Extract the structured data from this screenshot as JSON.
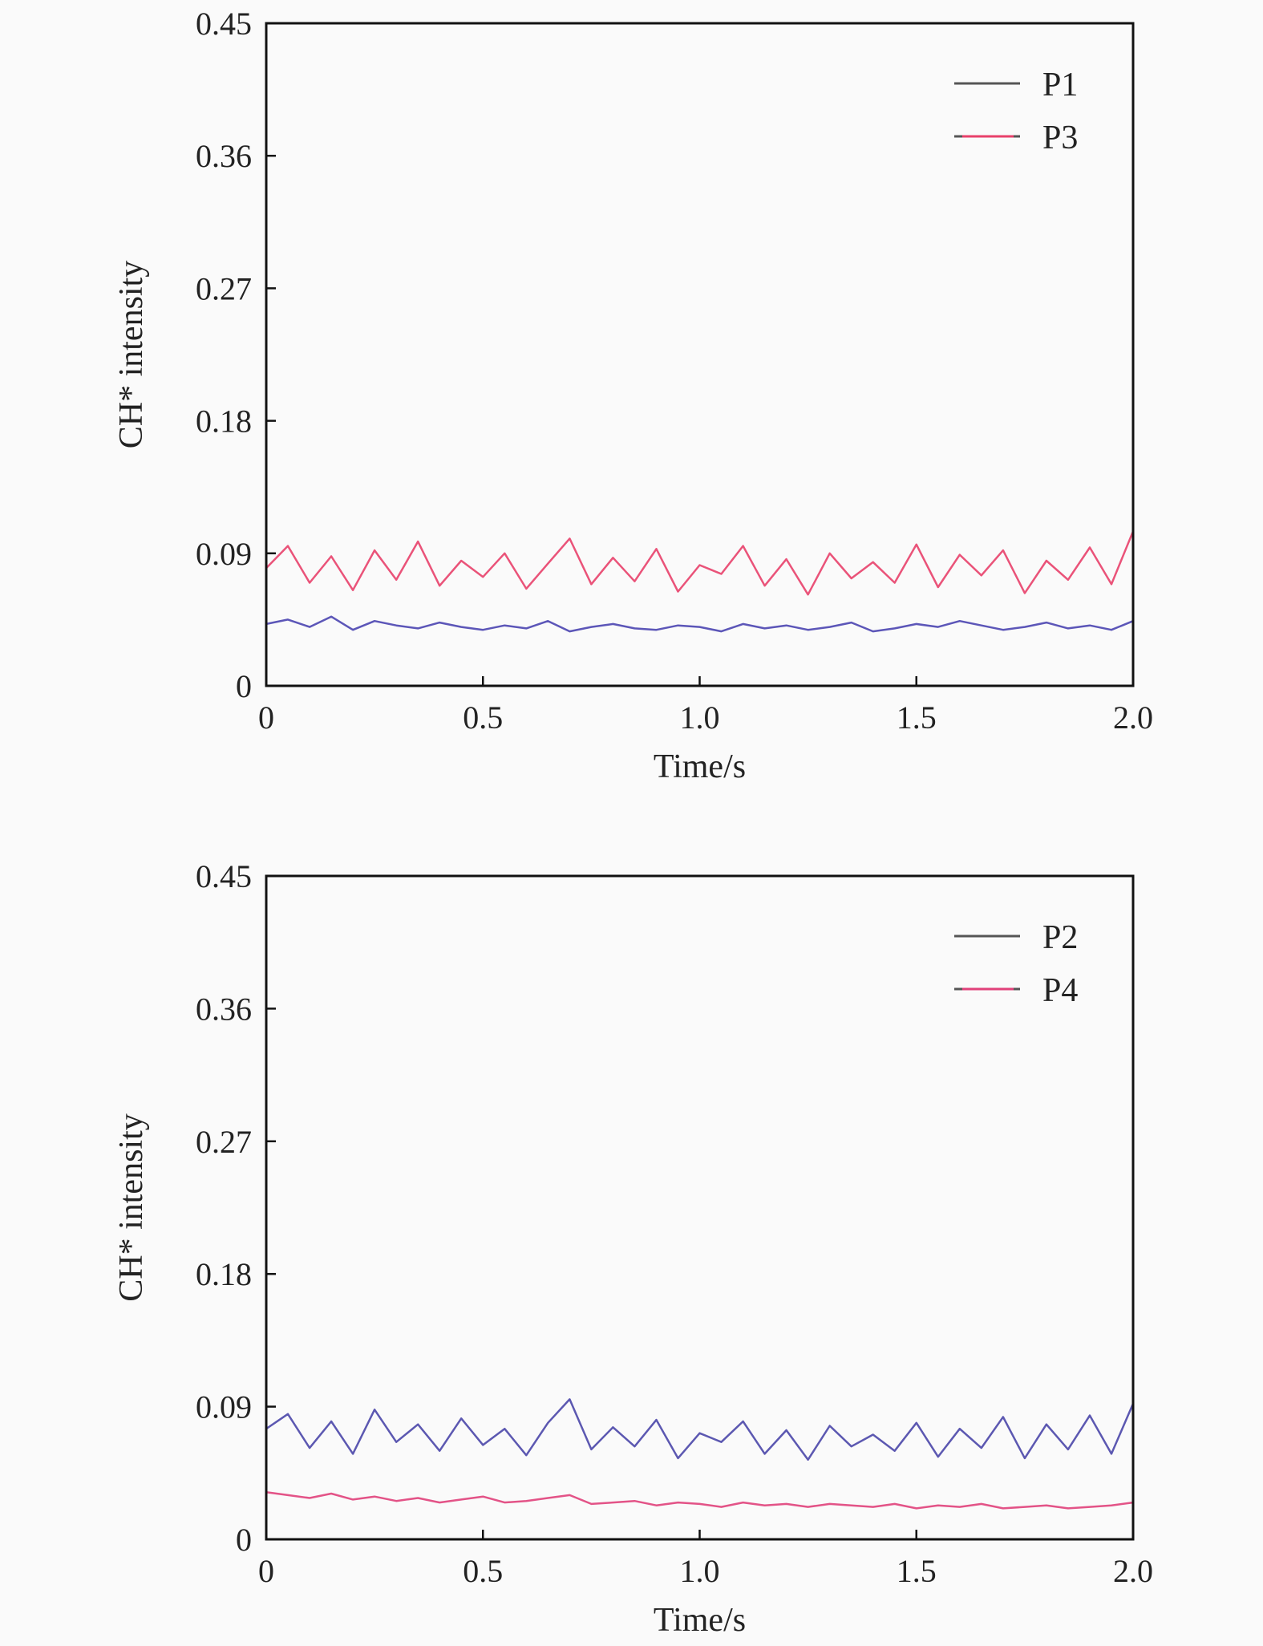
{
  "chart_data": [
    {
      "type": "line",
      "title": "",
      "xlabel": "Time/s",
      "ylabel": "CH* intensity",
      "xlim": [
        0,
        2.0
      ],
      "ylim": [
        0,
        0.45
      ],
      "xticks": [
        "0",
        "0.5",
        "1.0",
        "1.5",
        "2.0"
      ],
      "xtick_values": [
        0,
        0.5,
        1.0,
        1.5,
        2.0
      ],
      "yticks": [
        "0",
        "0.09",
        "0.18",
        "0.27",
        "0.36",
        "0.45"
      ],
      "ytick_values": [
        0,
        0.09,
        0.18,
        0.27,
        0.36,
        0.45
      ],
      "legend_position": "top-right",
      "x_step": 0.05,
      "series": [
        {
          "name": "P1",
          "color": "#4a44b0",
          "values": [
            0.042,
            0.045,
            0.04,
            0.047,
            0.038,
            0.044,
            0.041,
            0.039,
            0.043,
            0.04,
            0.038,
            0.041,
            0.039,
            0.044,
            0.037,
            0.04,
            0.042,
            0.039,
            0.038,
            0.041,
            0.04,
            0.037,
            0.042,
            0.039,
            0.041,
            0.038,
            0.04,
            0.043,
            0.037,
            0.039,
            0.042,
            0.04,
            0.044,
            0.041,
            0.038,
            0.04,
            0.043,
            0.039,
            0.041,
            0.038,
            0.044
          ]
        },
        {
          "name": "P3",
          "color": "#e8406a",
          "values": [
            0.08,
            0.095,
            0.07,
            0.088,
            0.065,
            0.092,
            0.072,
            0.098,
            0.068,
            0.085,
            0.074,
            0.09,
            0.066,
            0.083,
            0.1,
            0.069,
            0.087,
            0.071,
            0.093,
            0.064,
            0.082,
            0.076,
            0.095,
            0.068,
            0.086,
            0.062,
            0.09,
            0.073,
            0.084,
            0.07,
            0.096,
            0.067,
            0.089,
            0.075,
            0.092,
            0.063,
            0.085,
            0.072,
            0.094,
            0.069,
            0.105
          ]
        }
      ]
    },
    {
      "type": "line",
      "title": "",
      "xlabel": "Time/s",
      "ylabel": "CH* intensity",
      "xlim": [
        0,
        2.0
      ],
      "ylim": [
        0,
        0.45
      ],
      "xticks": [
        "0",
        "0.5",
        "1.0",
        "1.5",
        "2.0"
      ],
      "xtick_values": [
        0,
        0.5,
        1.0,
        1.5,
        2.0
      ],
      "yticks": [
        "0",
        "0.09",
        "0.18",
        "0.27",
        "0.36",
        "0.45"
      ],
      "ytick_values": [
        0,
        0.09,
        0.18,
        0.27,
        0.36,
        0.45
      ],
      "legend_position": "top-right",
      "x_step": 0.05,
      "series": [
        {
          "name": "P2",
          "color": "#4a46a8",
          "values": [
            0.075,
            0.085,
            0.062,
            0.08,
            0.058,
            0.088,
            0.066,
            0.078,
            0.06,
            0.082,
            0.064,
            0.075,
            0.057,
            0.079,
            0.095,
            0.061,
            0.076,
            0.063,
            0.081,
            0.055,
            0.072,
            0.066,
            0.08,
            0.058,
            0.074,
            0.054,
            0.077,
            0.063,
            0.071,
            0.06,
            0.079,
            0.056,
            0.075,
            0.062,
            0.083,
            0.055,
            0.078,
            0.061,
            0.084,
            0.058,
            0.092
          ]
        },
        {
          "name": "P4",
          "color": "#e0407a",
          "values": [
            0.032,
            0.03,
            0.028,
            0.031,
            0.027,
            0.029,
            0.026,
            0.028,
            0.025,
            0.027,
            0.029,
            0.025,
            0.026,
            0.028,
            0.03,
            0.024,
            0.025,
            0.026,
            0.023,
            0.025,
            0.024,
            0.022,
            0.025,
            0.023,
            0.024,
            0.022,
            0.024,
            0.023,
            0.022,
            0.024,
            0.021,
            0.023,
            0.022,
            0.024,
            0.021,
            0.022,
            0.023,
            0.021,
            0.022,
            0.023,
            0.025
          ]
        }
      ]
    }
  ]
}
